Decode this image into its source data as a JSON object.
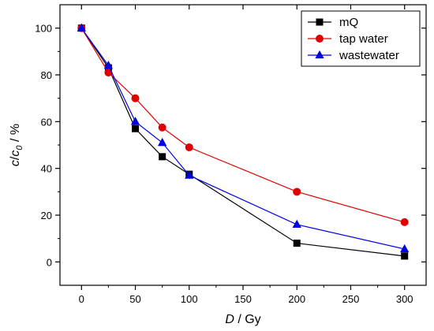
{
  "chart_data": {
    "type": "line",
    "title": "",
    "xlabel": {
      "italic": "D",
      "rest": " / Gy"
    },
    "ylabel": {
      "c": "c",
      "slash": "/",
      "c0_base": "c",
      "c0_sub": "0",
      "unit": " / %"
    },
    "xlim": [
      -20,
      320
    ],
    "ylim": [
      -10,
      110
    ],
    "xticks": [
      0,
      50,
      100,
      150,
      200,
      250,
      300
    ],
    "yticks": [
      0,
      20,
      40,
      60,
      80,
      100
    ],
    "grid": false,
    "legend_position": "top-right",
    "series": [
      {
        "name": "mQ",
        "color": "#000000",
        "marker": "square",
        "x": [
          0,
          25,
          50,
          75,
          100,
          200,
          300
        ],
        "y": [
          100,
          83,
          57,
          45,
          37.5,
          8,
          2.5
        ]
      },
      {
        "name": "tap water",
        "color": "#e00000",
        "marker": "circle",
        "x": [
          0,
          25,
          50,
          75,
          100,
          200,
          300
        ],
        "y": [
          100,
          81,
          70,
          57.5,
          49,
          30,
          17
        ]
      },
      {
        "name": "wastewater",
        "color": "#0000e6",
        "marker": "triangle",
        "x": [
          0,
          25,
          50,
          75,
          100,
          200,
          300
        ],
        "y": [
          100,
          84,
          60,
          51,
          37,
          16,
          5.5
        ]
      }
    ]
  }
}
